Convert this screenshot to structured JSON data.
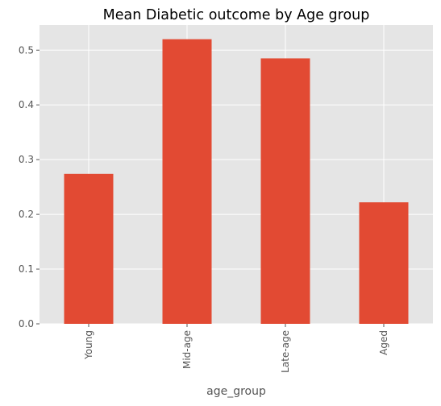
{
  "chart_data": {
    "type": "bar",
    "title": "Mean Diabetic outcome by Age group",
    "xlabel": "age_group",
    "ylabel": "",
    "categories": [
      "Young",
      "Mid-age",
      "Late-age",
      "Aged"
    ],
    "values": [
      0.274,
      0.52,
      0.485,
      0.222
    ],
    "ylim": [
      0,
      0.546
    ],
    "yticks": [
      "0.0",
      "0.1",
      "0.2",
      "0.3",
      "0.4",
      "0.5"
    ],
    "grid": true,
    "legend": "none",
    "colors": {
      "bar": "#E24A33",
      "plot_background": "#E5E5E5",
      "grid": "#FFFFFF"
    }
  }
}
